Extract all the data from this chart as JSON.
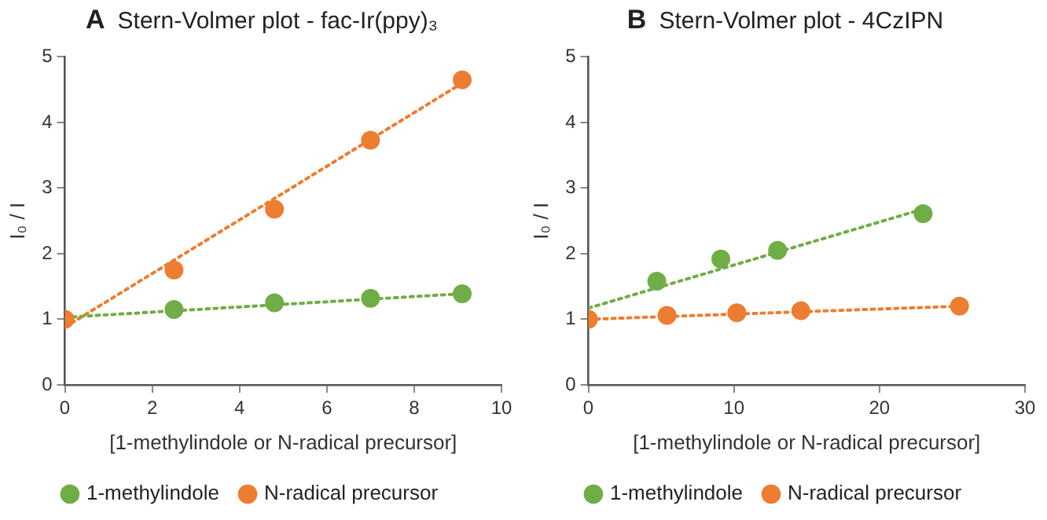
{
  "chart_data": [
    {
      "type": "scatter",
      "title": "Stern-Volmer plot - fac-Ir(ppy)₃",
      "annotations": [
        "A"
      ],
      "xlabel": "[1-methylindole or N-radical precursor]",
      "ylabel": "I₀ / I",
      "xlim": [
        0,
        10
      ],
      "xticks": [
        0,
        2,
        4,
        6,
        8,
        10
      ],
      "ylim": [
        0,
        5
      ],
      "yticks": [
        0,
        1,
        2,
        3,
        4,
        5
      ],
      "grid": false,
      "legend": "bottom",
      "marker": "circle",
      "series": [
        {
          "name": "1-methylindole",
          "color": "#70ad47",
          "x": [
            2.5,
            4.8,
            7,
            9.1
          ],
          "values": [
            1.15,
            1.25,
            1.32,
            1.39
          ]
        },
        {
          "name": "N-radical precursor",
          "color": "#ed7d31",
          "x": [
            0,
            2.5,
            4.8,
            7,
            9.1
          ],
          "values": [
            1,
            1.75,
            2.68,
            3.73,
            4.65
          ]
        },
        {
          "type": "line",
          "color": "#70ad47",
          "line_style": "dotted",
          "marker": "none",
          "x": [
            0,
            9.1
          ],
          "values": [
            1.03,
            1.39
          ]
        },
        {
          "type": "line",
          "color": "#ed7d31",
          "line_style": "dotted",
          "marker": "none",
          "x": [
            0,
            9.1
          ],
          "values": [
            0.88,
            4.6
          ]
        }
      ]
    },
    {
      "type": "scatter",
      "title": "Stern-Volmer plot - 4CzIPN",
      "annotations": [
        "B"
      ],
      "xlabel": "[1-methylindole or N-radical precursor]",
      "ylabel": "I₀ / I",
      "xlim": [
        0,
        30
      ],
      "xticks": [
        0,
        10,
        20,
        30
      ],
      "ylim": [
        0,
        5
      ],
      "yticks": [
        0,
        1,
        2,
        3,
        4,
        5
      ],
      "grid": false,
      "legend": "bottom",
      "marker": "circle",
      "series": [
        {
          "name": "1-methylindole",
          "color": "#70ad47",
          "x": [
            4.7,
            9.1,
            13,
            23
          ],
          "values": [
            1.58,
            1.92,
            2.05,
            2.61
          ]
        },
        {
          "name": "N-radical precursor",
          "color": "#ed7d31",
          "x": [
            0,
            5.4,
            10.2,
            14.6,
            25.5
          ],
          "values": [
            1,
            1.06,
            1.1,
            1.13,
            1.2
          ]
        },
        {
          "type": "line",
          "color": "#70ad47",
          "line_style": "dotted",
          "marker": "none",
          "x": [
            0,
            23
          ],
          "values": [
            1.17,
            2.68
          ]
        },
        {
          "type": "line",
          "color": "#ed7d31",
          "line_style": "dotted",
          "marker": "none",
          "x": [
            0,
            25.5
          ],
          "values": [
            1.0,
            1.2
          ]
        }
      ]
    }
  ]
}
